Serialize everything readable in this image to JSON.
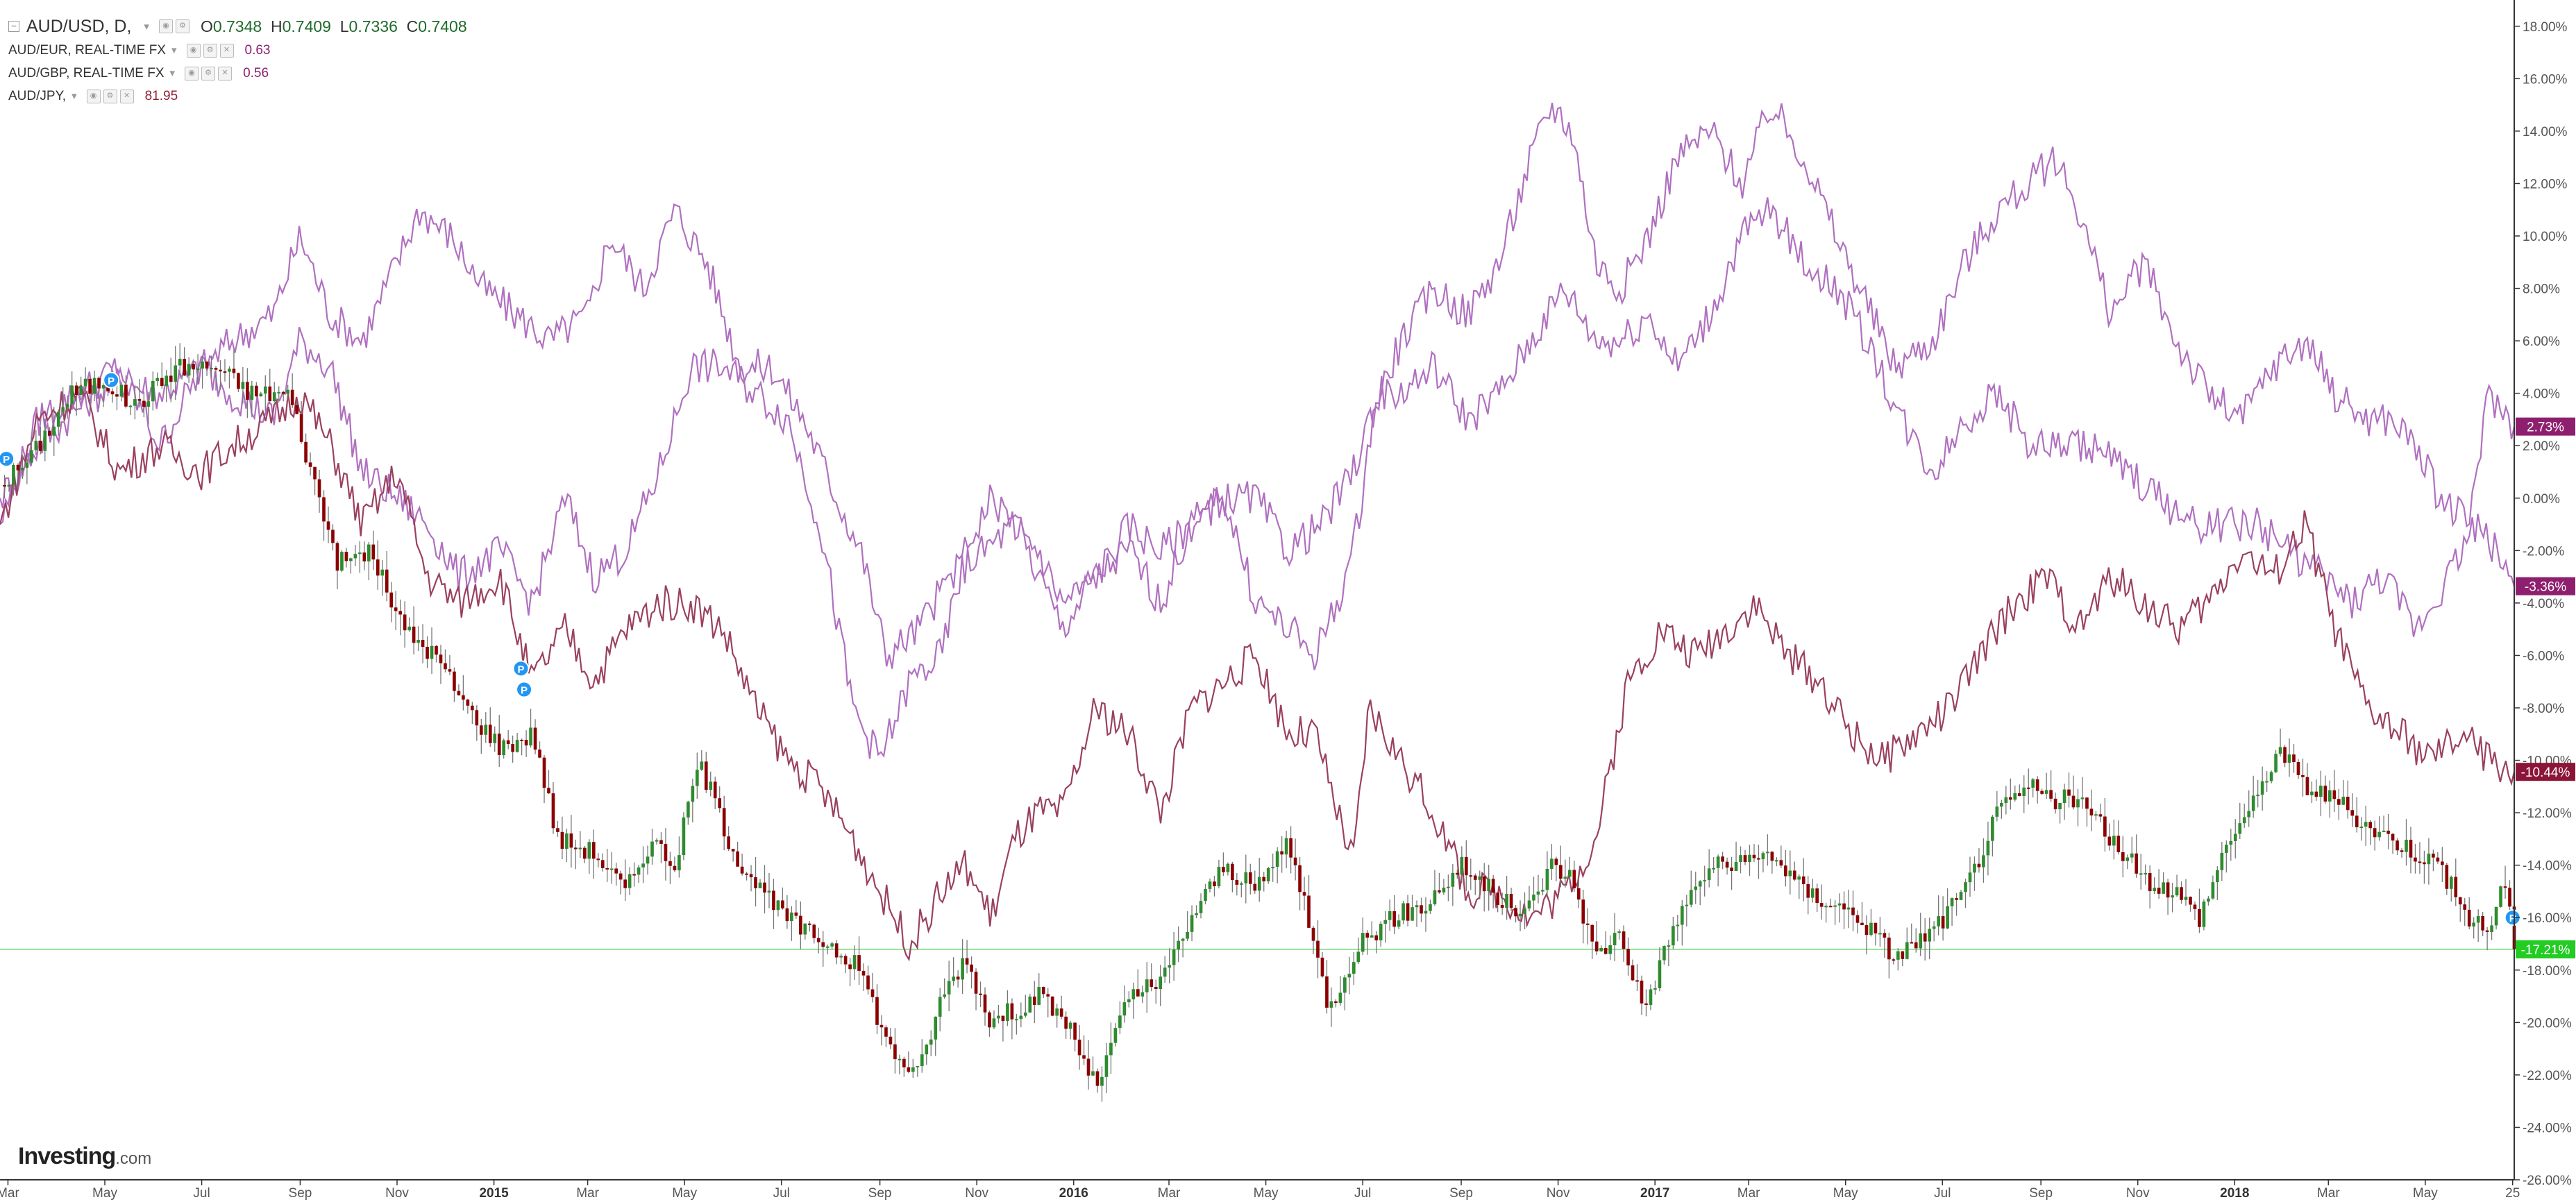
{
  "legend": {
    "main": {
      "symbol": "AUD/USD, D,",
      "open_label": "O",
      "open": "0.7348",
      "high_label": "H",
      "high": "0.7409",
      "low_label": "L",
      "low": "0.7336",
      "close_label": "C",
      "close": "0.7408"
    },
    "compare": [
      {
        "label": "AUD/EUR, REAL-TIME FX",
        "value": "0.63",
        "color": "#8e1f6e"
      },
      {
        "label": "AUD/GBP, REAL-TIME FX",
        "value": "0.56",
        "color": "#8e1f6e"
      },
      {
        "label": "AUD/JPY,",
        "value": "81.95",
        "color": "#8e1f3a"
      }
    ]
  },
  "logo": {
    "brand": "Investing",
    "domain": ".com"
  },
  "colors": {
    "up": "#2e8b2e",
    "down": "#8b0000",
    "wick": "#777777",
    "purple_line": "#b070c0",
    "maroon_line": "#9a4060",
    "badge_purple": "#8e1f6e",
    "badge_maroon": "#8b1538",
    "badge_green": "#22cc22",
    "grid_line": "#33cc33",
    "marker": "#2196f3"
  },
  "chart_data": {
    "type": "line",
    "title": "",
    "y_axis_unit": "%",
    "ylim": [
      -26,
      19
    ],
    "x_start": "2014-02-24",
    "x_end": "2018-06-26",
    "x_ticks": [
      {
        "date": "2014-03-01",
        "label": "Mar",
        "bold": false
      },
      {
        "date": "2014-05-01",
        "label": "May",
        "bold": false
      },
      {
        "date": "2014-07-01",
        "label": "Jul",
        "bold": false
      },
      {
        "date": "2014-09-01",
        "label": "Sep",
        "bold": false
      },
      {
        "date": "2014-11-01",
        "label": "Nov",
        "bold": false
      },
      {
        "date": "2015-01-01",
        "label": "2015",
        "bold": true
      },
      {
        "date": "2015-03-01",
        "label": "Mar",
        "bold": false
      },
      {
        "date": "2015-05-01",
        "label": "May",
        "bold": false
      },
      {
        "date": "2015-07-01",
        "label": "Jul",
        "bold": false
      },
      {
        "date": "2015-09-01",
        "label": "Sep",
        "bold": false
      },
      {
        "date": "2015-11-01",
        "label": "Nov",
        "bold": false
      },
      {
        "date": "2016-01-01",
        "label": "2016",
        "bold": true
      },
      {
        "date": "2016-03-01",
        "label": "Mar",
        "bold": false
      },
      {
        "date": "2016-05-01",
        "label": "May",
        "bold": false
      },
      {
        "date": "2016-07-01",
        "label": "Jul",
        "bold": false
      },
      {
        "date": "2016-09-01",
        "label": "Sep",
        "bold": false
      },
      {
        "date": "2016-11-01",
        "label": "Nov",
        "bold": false
      },
      {
        "date": "2017-01-01",
        "label": "2017",
        "bold": true
      },
      {
        "date": "2017-03-01",
        "label": "Mar",
        "bold": false
      },
      {
        "date": "2017-05-01",
        "label": "May",
        "bold": false
      },
      {
        "date": "2017-07-01",
        "label": "Jul",
        "bold": false
      },
      {
        "date": "2017-09-01",
        "label": "Sep",
        "bold": false
      },
      {
        "date": "2017-11-01",
        "label": "Nov",
        "bold": false
      },
      {
        "date": "2018-01-01",
        "label": "2018",
        "bold": true
      },
      {
        "date": "2018-03-01",
        "label": "Mar",
        "bold": false
      },
      {
        "date": "2018-05-01",
        "label": "May",
        "bold": false
      },
      {
        "date": "2018-06-25",
        "label": "25",
        "bold": false
      }
    ],
    "y_ticks": [
      {
        "value": 18,
        "label": "18.00%"
      },
      {
        "value": 16,
        "label": "16.00%"
      },
      {
        "value": 14,
        "label": "14.00%"
      },
      {
        "value": 12,
        "label": "12.00%"
      },
      {
        "value": 10,
        "label": "10.00%"
      },
      {
        "value": 8,
        "label": "8.00%"
      },
      {
        "value": 6,
        "label": "6.00%"
      },
      {
        "value": 4,
        "label": "4.00%"
      },
      {
        "value": 2,
        "label": "2.00%"
      },
      {
        "value": 0,
        "label": "0.00%"
      },
      {
        "value": -2,
        "label": "-2.00%"
      },
      {
        "value": -4,
        "label": "-4.00%"
      },
      {
        "value": -6,
        "label": "-6.00%"
      },
      {
        "value": -8,
        "label": "-8.00%"
      },
      {
        "value": -10,
        "label": "-10.00%"
      },
      {
        "value": -12,
        "label": "-12.00%"
      },
      {
        "value": -14,
        "label": "-14.00%"
      },
      {
        "value": -16,
        "label": "-16.00%"
      },
      {
        "value": -18,
        "label": "-18.00%"
      },
      {
        "value": -20,
        "label": "-20.00%"
      },
      {
        "value": -22,
        "label": "-22.00%"
      },
      {
        "value": -24,
        "label": "-24.00%"
      },
      {
        "value": -26,
        "label": "-26.00%"
      }
    ],
    "current_line": -17.21,
    "series": [
      {
        "kind": "candles",
        "x": [
          "2014-02-24",
          "2014-03-15",
          "2014-04-10",
          "2014-05-01",
          "2014-05-20",
          "2014-06-15",
          "2014-07-10",
          "2014-08-01",
          "2014-08-25",
          "2014-09-08",
          "2014-09-25",
          "2014-10-15",
          "2014-11-05",
          "2014-11-25",
          "2014-12-15",
          "2015-01-05",
          "2015-01-26",
          "2015-02-10",
          "2015-03-05",
          "2015-03-25",
          "2015-04-10",
          "2015-04-25",
          "2015-05-10",
          "2015-06-01",
          "2015-06-25",
          "2015-07-15",
          "2015-08-01",
          "2015-08-20",
          "2015-09-07",
          "2015-09-25",
          "2015-10-10",
          "2015-10-25",
          "2015-11-10",
          "2015-11-25",
          "2015-12-10",
          "2015-12-28",
          "2016-01-15",
          "2016-02-05",
          "2016-02-25",
          "2016-03-15",
          "2016-04-05",
          "2016-04-25",
          "2016-05-15",
          "2016-05-25",
          "2016-06-10",
          "2016-06-28",
          "2016-07-20",
          "2016-08-10",
          "2016-09-01",
          "2016-09-20",
          "2016-10-10",
          "2016-10-28",
          "2016-11-10",
          "2016-11-25",
          "2016-12-10",
          "2016-12-25",
          "2017-01-15",
          "2017-02-05",
          "2017-02-25",
          "2017-03-15",
          "2017-04-05",
          "2017-04-25",
          "2017-05-10",
          "2017-06-01",
          "2017-06-25",
          "2017-07-15",
          "2017-08-05",
          "2017-08-25",
          "2017-09-10",
          "2017-09-25",
          "2017-10-15",
          "2017-11-05",
          "2017-11-25",
          "2017-12-10",
          "2017-12-28",
          "2018-01-15",
          "2018-01-28",
          "2018-02-15",
          "2018-03-05",
          "2018-03-25",
          "2018-04-10",
          "2018-04-25",
          "2018-05-10",
          "2018-05-28",
          "2018-06-10",
          "2018-06-20",
          "2018-06-26"
        ],
        "values": [
          0.5,
          1.5,
          4,
          4.5,
          3.5,
          5,
          5,
          4,
          4,
          1,
          -2.5,
          -2,
          -5,
          -6,
          -8,
          -9.5,
          -9,
          -13,
          -13.5,
          -15,
          -13,
          -14,
          -10,
          -13.5,
          -15.5,
          -16.5,
          -17,
          -18,
          -21,
          -22,
          -19,
          -17.5,
          -20,
          -19.5,
          -19,
          -20,
          -22.5,
          -19,
          -18.5,
          -16,
          -14,
          -15,
          -13,
          -15.5,
          -19.5,
          -17,
          -16,
          -15.5,
          -14,
          -15,
          -16,
          -14,
          -14.5,
          -17.5,
          -16.5,
          -19.5,
          -16,
          -14,
          -14,
          -13.5,
          -15,
          -15.5,
          -16,
          -17.5,
          -16.5,
          -15,
          -12,
          -11,
          -11.5,
          -11.5,
          -13,
          -14.5,
          -15,
          -16,
          -13,
          -11.5,
          -9.5,
          -11,
          -11.5,
          -12.5,
          -13,
          -13.5,
          -14,
          -16,
          -16.5,
          -14.5,
          -17.2
        ]
      },
      {
        "kind": "line",
        "color_key": "purple_line",
        "badge": "2.73%",
        "badge_color_key": "badge_purple",
        "x": [
          "2014-02-24",
          "2014-03-20",
          "2014-04-15",
          "2014-05-10",
          "2014-06-05",
          "2014-07-01",
          "2014-07-20",
          "2014-08-15",
          "2014-09-01",
          "2014-09-20",
          "2014-10-10",
          "2014-11-01",
          "2014-11-15",
          "2014-12-05",
          "2014-12-25",
          "2015-01-15",
          "2015-02-05",
          "2015-03-01",
          "2015-03-15",
          "2015-04-05",
          "2015-04-25",
          "2015-05-15",
          "2015-06-05",
          "2015-06-25",
          "2015-07-15",
          "2015-08-05",
          "2015-08-20",
          "2015-09-05",
          "2015-09-25",
          "2015-10-15",
          "2015-11-05",
          "2015-11-25",
          "2015-12-10",
          "2015-12-25",
          "2016-01-15",
          "2016-02-05",
          "2016-02-25",
          "2016-03-15",
          "2016-04-05",
          "2016-04-25",
          "2016-05-15",
          "2016-06-05",
          "2016-06-25",
          "2016-07-05",
          "2016-07-25",
          "2016-08-15",
          "2016-09-05",
          "2016-09-25",
          "2016-10-15",
          "2016-10-28",
          "2016-11-10",
          "2016-11-25",
          "2016-12-10",
          "2016-12-28",
          "2017-01-15",
          "2017-02-05",
          "2017-02-25",
          "2017-03-15",
          "2017-04-05",
          "2017-04-25",
          "2017-05-10",
          "2017-06-01",
          "2017-06-25",
          "2017-07-15",
          "2017-08-05",
          "2017-08-25",
          "2017-09-10",
          "2017-09-25",
          "2017-10-15",
          "2017-11-05",
          "2017-11-25",
          "2017-12-15",
          "2018-01-05",
          "2018-01-25",
          "2018-02-15",
          "2018-03-05",
          "2018-03-25",
          "2018-04-10",
          "2018-04-25",
          "2018-05-10",
          "2018-05-28",
          "2018-06-10",
          "2018-06-26"
        ],
        "values": [
          0,
          2,
          3.5,
          4.5,
          4,
          5,
          6,
          7,
          10,
          7,
          6,
          9,
          11,
          10,
          8,
          7,
          6,
          7,
          10,
          8,
          11,
          9,
          5,
          5,
          3,
          0,
          -2,
          -6,
          -5,
          -3,
          -2,
          -1,
          -2,
          -4,
          -3,
          -1,
          -2,
          -1,
          0,
          0,
          -2,
          -1,
          1,
          3,
          6,
          8,
          7,
          9,
          13,
          15,
          14,
          9,
          8,
          10,
          13,
          14,
          12,
          15,
          13,
          10,
          8,
          5,
          6,
          9,
          11,
          12,
          13,
          11,
          7,
          9,
          6,
          4,
          3,
          5,
          6,
          4,
          3,
          3,
          2,
          0,
          -1,
          4,
          2.73
        ]
      },
      {
        "kind": "line",
        "color_key": "purple_line",
        "badge": "-3.36%",
        "badge_color_key": "badge_purple",
        "x": [
          "2014-02-24",
          "2014-03-20",
          "2014-04-15",
          "2014-05-10",
          "2014-06-05",
          "2014-07-01",
          "2014-07-20",
          "2014-08-15",
          "2014-09-01",
          "2014-09-20",
          "2014-10-10",
          "2014-11-01",
          "2014-11-20",
          "2014-12-10",
          "2015-01-05",
          "2015-01-25",
          "2015-02-15",
          "2015-03-05",
          "2015-03-25",
          "2015-04-15",
          "2015-05-05",
          "2015-05-25",
          "2015-06-15",
          "2015-07-05",
          "2015-07-25",
          "2015-08-15",
          "2015-09-01",
          "2015-09-20",
          "2015-10-10",
          "2015-10-25",
          "2015-11-10",
          "2015-11-25",
          "2015-12-10",
          "2015-12-25",
          "2016-01-15",
          "2016-02-05",
          "2016-02-25",
          "2016-03-15",
          "2016-04-05",
          "2016-04-25",
          "2016-05-15",
          "2016-06-01",
          "2016-06-15",
          "2016-06-25",
          "2016-07-10",
          "2016-07-25",
          "2016-08-15",
          "2016-09-05",
          "2016-09-25",
          "2016-10-15",
          "2016-11-05",
          "2016-11-25",
          "2016-12-10",
          "2016-12-28",
          "2017-01-15",
          "2017-02-05",
          "2017-02-25",
          "2017-03-15",
          "2017-04-05",
          "2017-04-25",
          "2017-05-15",
          "2017-06-05",
          "2017-06-25",
          "2017-07-15",
          "2017-08-05",
          "2017-08-25",
          "2017-09-15",
          "2017-10-05",
          "2017-10-25",
          "2017-11-15",
          "2017-12-05",
          "2017-12-25",
          "2018-01-15",
          "2018-02-05",
          "2018-02-25",
          "2018-03-15",
          "2018-04-05",
          "2018-04-25",
          "2018-05-15",
          "2018-06-01",
          "2018-06-15",
          "2018-06-26"
        ],
        "values": [
          -1,
          3,
          4,
          5,
          2,
          5,
          4,
          3,
          6,
          5,
          1,
          0,
          -1,
          -3,
          -2,
          -4,
          0,
          -3,
          -2,
          1,
          5,
          5,
          4,
          3,
          -1,
          -8,
          -10,
          -7,
          -6,
          -2,
          0,
          -1,
          -3,
          -5,
          -3,
          -2,
          -4,
          -1,
          0,
          -4,
          -5,
          -6,
          -4,
          -2,
          4,
          4,
          5,
          3,
          4,
          6,
          8,
          6,
          6,
          7,
          5,
          7,
          10,
          11,
          9,
          8,
          6,
          3,
          1,
          3,
          4,
          2,
          2,
          2,
          1,
          0,
          -1,
          -1,
          -1,
          -2,
          -3,
          -4,
          -3,
          -5,
          -3,
          -1,
          -2,
          -3.36
        ]
      },
      {
        "kind": "line",
        "color_key": "maroon_line",
        "badge": "-10.44%",
        "badge_color_key": "badge_maroon",
        "x": [
          "2014-02-24",
          "2014-03-20",
          "2014-04-15",
          "2014-05-10",
          "2014-06-05",
          "2014-07-01",
          "2014-07-20",
          "2014-08-15",
          "2014-09-01",
          "2014-09-20",
          "2014-10-10",
          "2014-11-01",
          "2014-11-20",
          "2014-12-10",
          "2015-01-05",
          "2015-01-25",
          "2015-02-15",
          "2015-03-05",
          "2015-03-25",
          "2015-04-15",
          "2015-05-05",
          "2015-05-25",
          "2015-06-15",
          "2015-07-05",
          "2015-07-25",
          "2015-08-15",
          "2015-09-01",
          "2015-09-20",
          "2015-10-10",
          "2015-10-25",
          "2015-11-10",
          "2015-11-25",
          "2015-12-10",
          "2015-12-25",
          "2016-01-15",
          "2016-02-05",
          "2016-02-25",
          "2016-03-15",
          "2016-04-05",
          "2016-04-25",
          "2016-05-15",
          "2016-06-01",
          "2016-06-15",
          "2016-06-25",
          "2016-07-05",
          "2016-07-25",
          "2016-08-15",
          "2016-09-05",
          "2016-09-25",
          "2016-10-15",
          "2016-11-05",
          "2016-11-25",
          "2016-12-15",
          "2017-01-05",
          "2017-01-25",
          "2017-02-15",
          "2017-03-05",
          "2017-03-25",
          "2017-04-15",
          "2017-05-05",
          "2017-05-25",
          "2017-06-15",
          "2017-07-05",
          "2017-07-25",
          "2017-08-15",
          "2017-09-05",
          "2017-09-25",
          "2017-10-15",
          "2017-11-05",
          "2017-11-25",
          "2017-12-15",
          "2018-01-05",
          "2018-01-25",
          "2018-02-15",
          "2018-03-05",
          "2018-03-25",
          "2018-04-15",
          "2018-05-05",
          "2018-05-25",
          "2018-06-10",
          "2018-06-26"
        ],
        "values": [
          -1,
          3,
          4,
          1,
          2,
          1,
          2,
          3,
          4,
          2,
          -1,
          1,
          -3,
          -4,
          -3,
          -7,
          -5,
          -7,
          -5,
          -4,
          -4,
          -5,
          -8,
          -10,
          -11,
          -13,
          -15,
          -17,
          -15,
          -14,
          -16,
          -13,
          -12,
          -12,
          -8,
          -9,
          -12,
          -8,
          -7,
          -6,
          -9,
          -9,
          -12,
          -14,
          -8,
          -10,
          -12,
          -15,
          -15,
          -16,
          -15,
          -13,
          -7,
          -5,
          -6,
          -5,
          -4,
          -6,
          -7,
          -9,
          -10,
          -9,
          -8,
          -6,
          -4,
          -3,
          -5,
          -3,
          -4,
          -5,
          -4,
          -2,
          -3,
          -1,
          -5,
          -8,
          -9,
          -10,
          -9,
          -10,
          -10.44
        ]
      }
    ],
    "markers": [
      {
        "date": "2014-02-28",
        "value": 1.5,
        "label": "P"
      },
      {
        "date": "2014-05-05",
        "value": 4.5,
        "label": "P"
      },
      {
        "date": "2015-01-18",
        "value": -6.5,
        "label": "P"
      },
      {
        "date": "2015-01-20",
        "value": -7.3,
        "label": "P"
      },
      {
        "date": "2018-06-25",
        "value": -16,
        "label": "P"
      }
    ]
  }
}
